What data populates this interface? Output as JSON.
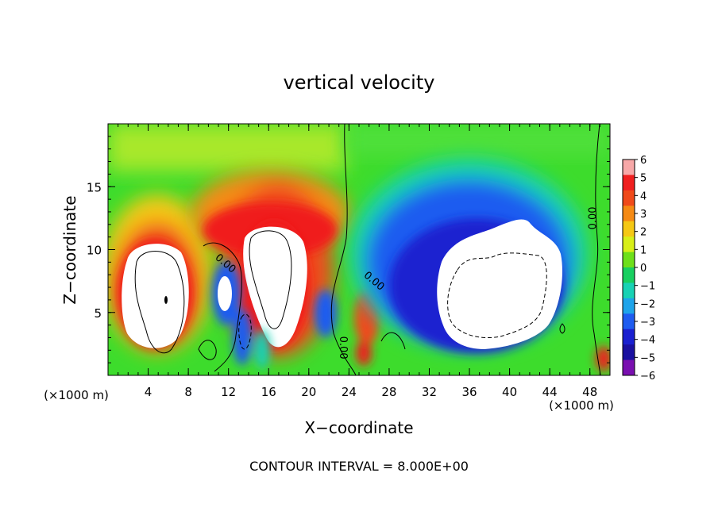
{
  "chart_data": {
    "type": "heatmap",
    "title": "vertical velocity",
    "xlabel": "X−coordinate",
    "ylabel": "Z−coordinate",
    "x_unit_left": "(×1000 m)",
    "x_unit_right": "(×1000 m)",
    "footer": "CONTOUR INTERVAL = 8.000E+00",
    "xlim": [
      0,
      50
    ],
    "ylim": [
      0,
      20
    ],
    "x_ticks": [
      "4",
      "8",
      "12",
      "16",
      "20",
      "24",
      "28",
      "32",
      "36",
      "40",
      "44",
      "48"
    ],
    "x_tick_values": [
      4,
      8,
      12,
      16,
      20,
      24,
      28,
      32,
      36,
      40,
      44,
      48
    ],
    "y_ticks": [
      "5",
      "10",
      "15"
    ],
    "y_tick_values": [
      5,
      10,
      15
    ],
    "contour_labels": [
      {
        "text": "0.00",
        "x": 11.5,
        "y": 8.7,
        "rotate": 40
      },
      {
        "text": "0.00",
        "x": 26.3,
        "y": 7.3,
        "rotate": 40
      },
      {
        "text": "0.00",
        "x": 23.1,
        "y": 2.2,
        "rotate": 90
      },
      {
        "text": "0.00",
        "x": 48.6,
        "y": 12.5,
        "rotate": -90
      }
    ],
    "colorbar": {
      "labels": [
        "6",
        "5",
        "4",
        "3",
        "2",
        "1",
        "0",
        "−1",
        "−2",
        "−3",
        "−4",
        "−5",
        "−6"
      ],
      "colors": [
        "#f7a8a8",
        "#f01f1f",
        "#f04a1a",
        "#f58a14",
        "#f5c814",
        "#d8ef18",
        "#6ee01a",
        "#18d060",
        "#18d2b4",
        "#1ea4ea",
        "#1e5cf0",
        "#1a20d0",
        "#1a10a0",
        "#7a10b0"
      ]
    },
    "fields": {
      "background": "#3ddc2c",
      "features": [
        {
          "desc": "strong updraft",
          "x": 5.5,
          "y": 7.5,
          "value": 8
        },
        {
          "desc": "updraft",
          "x": 15.5,
          "y": 8.5,
          "value": 8
        },
        {
          "desc": "updraft",
          "x": 17.0,
          "y": 11.0,
          "value": 5
        },
        {
          "desc": "weak updraft",
          "x": 26.0,
          "y": 4.0,
          "value": 3
        },
        {
          "desc": "downdraft",
          "x": 11.0,
          "y": 6.0,
          "value": -3
        },
        {
          "desc": "downdraft",
          "x": 21.5,
          "y": 4.2,
          "value": -4
        },
        {
          "desc": "strong downdraft",
          "x": 39.5,
          "y": 8.0,
          "value": -8
        },
        {
          "desc": "downdraft",
          "x": 36.0,
          "y": 12.5,
          "value": -4
        }
      ]
    }
  }
}
